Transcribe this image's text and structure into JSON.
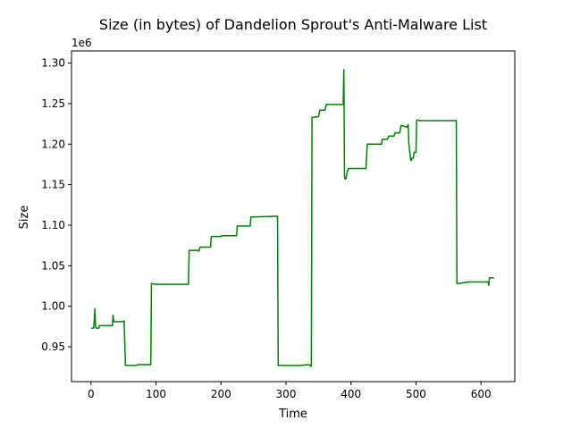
{
  "chart_data": {
    "type": "line",
    "title": "Size (in bytes) of Dandelion Sprout's Anti-Malware List",
    "xlabel": "Time",
    "ylabel": "Size",
    "y_offset_label": "1e6",
    "xlim": [
      -30,
      652
    ],
    "ylim": [
      0.907,
      1.315
    ],
    "x_ticks": [
      0,
      100,
      200,
      300,
      400,
      500,
      600
    ],
    "x_tick_labels": [
      "0",
      "100",
      "200",
      "300",
      "400",
      "500",
      "600"
    ],
    "y_ticks": [
      0.95,
      1.0,
      1.05,
      1.1,
      1.15,
      1.2,
      1.25,
      1.3
    ],
    "y_tick_labels": [
      "0.95",
      "1.00",
      "1.05",
      "1.10",
      "1.15",
      "1.20",
      "1.25",
      "1.30"
    ],
    "grid": false,
    "legend": "none",
    "series": [
      {
        "color": "#008000",
        "x": [
          0,
          4,
          5,
          6,
          7,
          8,
          9,
          12,
          13,
          14,
          16,
          17,
          33,
          34,
          35,
          36,
          50,
          51,
          53,
          70,
          72,
          90,
          92,
          93,
          100,
          105,
          148,
          150,
          151,
          165,
          166,
          168,
          182,
          184,
          185,
          200,
          201,
          222,
          224,
          225,
          243,
          245,
          246,
          285,
          287,
          288,
          320,
          322,
          334,
          336,
          338,
          339,
          340,
          350,
          352,
          360,
          362,
          380,
          382,
          385,
          386,
          388,
          389,
          390,
          391,
          392,
          394,
          396,
          397,
          398,
          400,
          402,
          403,
          423,
          425,
          426,
          445,
          447,
          448,
          456,
          458,
          459,
          466,
          468,
          469,
          475,
          477,
          478,
          486,
          488,
          489,
          492,
          493,
          494,
          495,
          496,
          497,
          500,
          501,
          502,
          505,
          506,
          507,
          509,
          512,
          513,
          525,
          527,
          545,
          550,
          560,
          562,
          563,
          565,
          566,
          580,
          582,
          610,
          611,
          612,
          613,
          614,
          620
        ],
        "y": [
          0.973,
          0.973,
          0.982,
          0.997,
          0.975,
          0.973,
          0.973,
          0.973,
          0.976,
          0.976,
          0.976,
          0.976,
          0.976,
          0.989,
          0.981,
          0.981,
          0.981,
          0.982,
          0.927,
          0.927,
          0.928,
          0.928,
          0.928,
          1.028,
          1.027,
          1.027,
          1.027,
          1.027,
          1.069,
          1.069,
          1.068,
          1.073,
          1.073,
          1.073,
          1.086,
          1.086,
          1.087,
          1.087,
          1.087,
          1.099,
          1.099,
          1.099,
          1.11,
          1.111,
          1.111,
          0.927,
          0.927,
          0.927,
          0.928,
          0.928,
          0.926,
          0.926,
          1.233,
          1.234,
          1.242,
          1.242,
          1.249,
          1.249,
          1.249,
          1.249,
          1.249,
          1.249,
          1.292,
          1.16,
          1.157,
          1.157,
          1.165,
          1.17,
          1.17,
          1.17,
          1.17,
          1.17,
          1.17,
          1.17,
          1.2,
          1.2,
          1.2,
          1.2,
          1.206,
          1.206,
          1.21,
          1.21,
          1.21,
          1.214,
          1.214,
          1.214,
          1.223,
          1.223,
          1.221,
          1.224,
          1.2,
          1.18,
          1.18,
          1.183,
          1.183,
          1.183,
          1.19,
          1.19,
          1.229,
          1.23,
          1.229,
          1.229,
          1.229,
          1.229,
          1.229,
          1.229,
          1.229,
          1.229,
          1.229,
          1.229,
          1.229,
          1.229,
          1.028,
          1.028,
          1.028,
          1.03,
          1.03,
          1.03,
          1.03,
          1.026,
          1.035,
          1.035,
          1.035
        ]
      }
    ]
  }
}
